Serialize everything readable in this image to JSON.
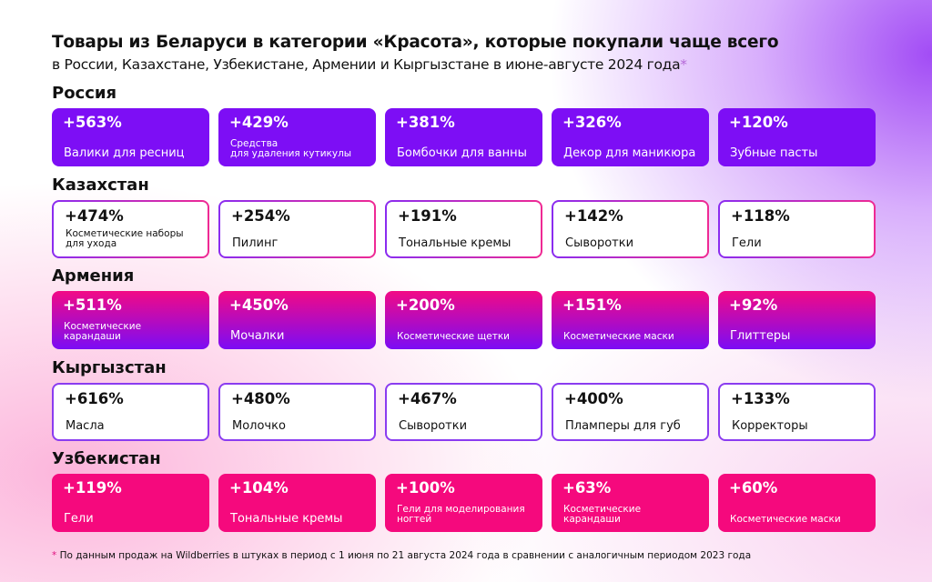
{
  "header": {
    "title": "Товары из Беларуси в категории «Красота», которые покупали чаще всего",
    "subtitle": "в России, Казахстане, Узбекистане, Армении и Кыргызстане в июне-августе 2024 года",
    "asterisk": "*"
  },
  "colors": {
    "purple": "#7d0ef5",
    "pink": "#f5097d"
  },
  "sections": [
    {
      "name": "Россия",
      "style": "russia",
      "items": [
        {
          "pct": "+563%",
          "label": "Валики для ресниц"
        },
        {
          "pct": "+429%",
          "label": "Средства\nдля удаления кутикулы",
          "small": true
        },
        {
          "pct": "+381%",
          "label": "Бомбочки для ванны"
        },
        {
          "pct": "+326%",
          "label": "Декор для маникюра"
        },
        {
          "pct": "+120%",
          "label": "Зубные пасты"
        }
      ]
    },
    {
      "name": "Казахстан",
      "style": "kaz",
      "items": [
        {
          "pct": "+474%",
          "label": "Косметические наборы\nдля ухода",
          "small": true
        },
        {
          "pct": "+254%",
          "label": "Пилинг"
        },
        {
          "pct": "+191%",
          "label": "Тональные кремы"
        },
        {
          "pct": "+142%",
          "label": "Сыворотки"
        },
        {
          "pct": "+118%",
          "label": "Гели"
        }
      ]
    },
    {
      "name": "Армения",
      "style": "arm",
      "items": [
        {
          "pct": "+511%",
          "label": "Косметические\nкарандаши",
          "small": true
        },
        {
          "pct": "+450%",
          "label": "Мочалки"
        },
        {
          "pct": "+200%",
          "label": "Косметические щетки",
          "small": true
        },
        {
          "pct": "+151%",
          "label": "Косметические маски",
          "small": true
        },
        {
          "pct": "+92%",
          "label": "Глиттеры"
        }
      ]
    },
    {
      "name": "Кыргызстан",
      "style": "kyr",
      "items": [
        {
          "pct": "+616%",
          "label": "Масла"
        },
        {
          "pct": "+480%",
          "label": "Молочко"
        },
        {
          "pct": "+467%",
          "label": "Сыворотки"
        },
        {
          "pct": "+400%",
          "label": "Пламперы для губ"
        },
        {
          "pct": "+133%",
          "label": "Корректоры"
        }
      ]
    },
    {
      "name": "Узбекистан",
      "style": "uzb",
      "items": [
        {
          "pct": "+119%",
          "label": "Гели"
        },
        {
          "pct": "+104%",
          "label": "Тональные кремы"
        },
        {
          "pct": "+100%",
          "label": "Гели для моделирования\nногтей",
          "small": true
        },
        {
          "pct": "+63%",
          "label": "Косметические\nкарандаши",
          "small": true
        },
        {
          "pct": "+60%",
          "label": "Косметические маски",
          "small": true
        }
      ]
    }
  ],
  "footnote": {
    "asterisk": "*",
    "text": "По данным продаж на Wildberries в штуках в период с 1 июня по 21 августа 2024 года в сравнении с аналогичным периодом 2023 года"
  }
}
